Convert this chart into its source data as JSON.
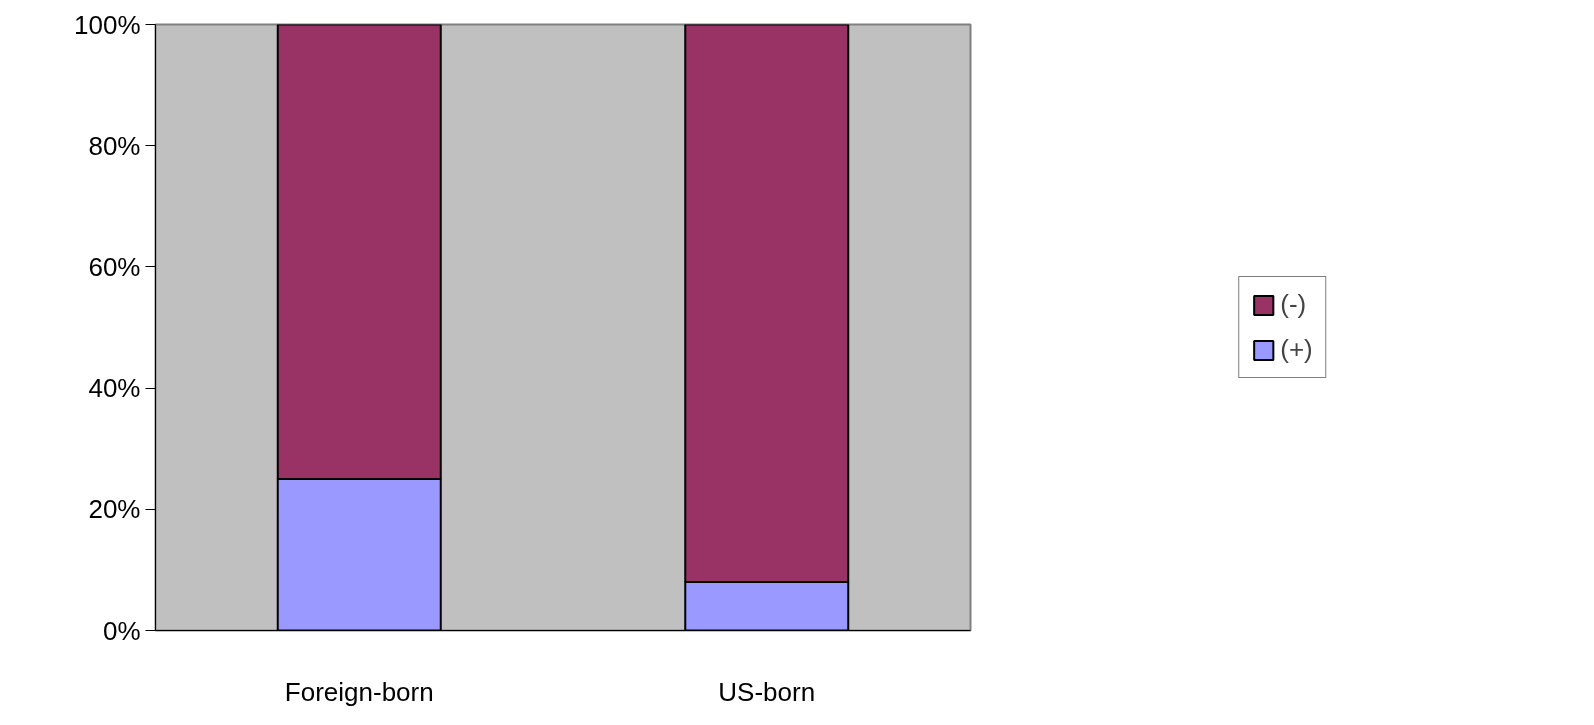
{
  "chart_data": {
    "type": "bar",
    "stacked": true,
    "categories": [
      "Foreign-born",
      "US-born"
    ],
    "series": [
      {
        "name": "(+)",
        "color": "#9999ff",
        "values": [
          25,
          8
        ]
      },
      {
        "name": "(-)",
        "color": "#993366",
        "values": [
          75,
          92
        ]
      }
    ],
    "ylim": [
      0,
      100
    ],
    "yticks": [
      {
        "value": 0,
        "label": "0%"
      },
      {
        "value": 20,
        "label": "20%"
      },
      {
        "value": 40,
        "label": "40%"
      },
      {
        "value": 60,
        "label": "60%"
      },
      {
        "value": 80,
        "label": "80%"
      },
      {
        "value": 100,
        "label": "100%"
      }
    ],
    "grid": false,
    "legend": "right"
  }
}
